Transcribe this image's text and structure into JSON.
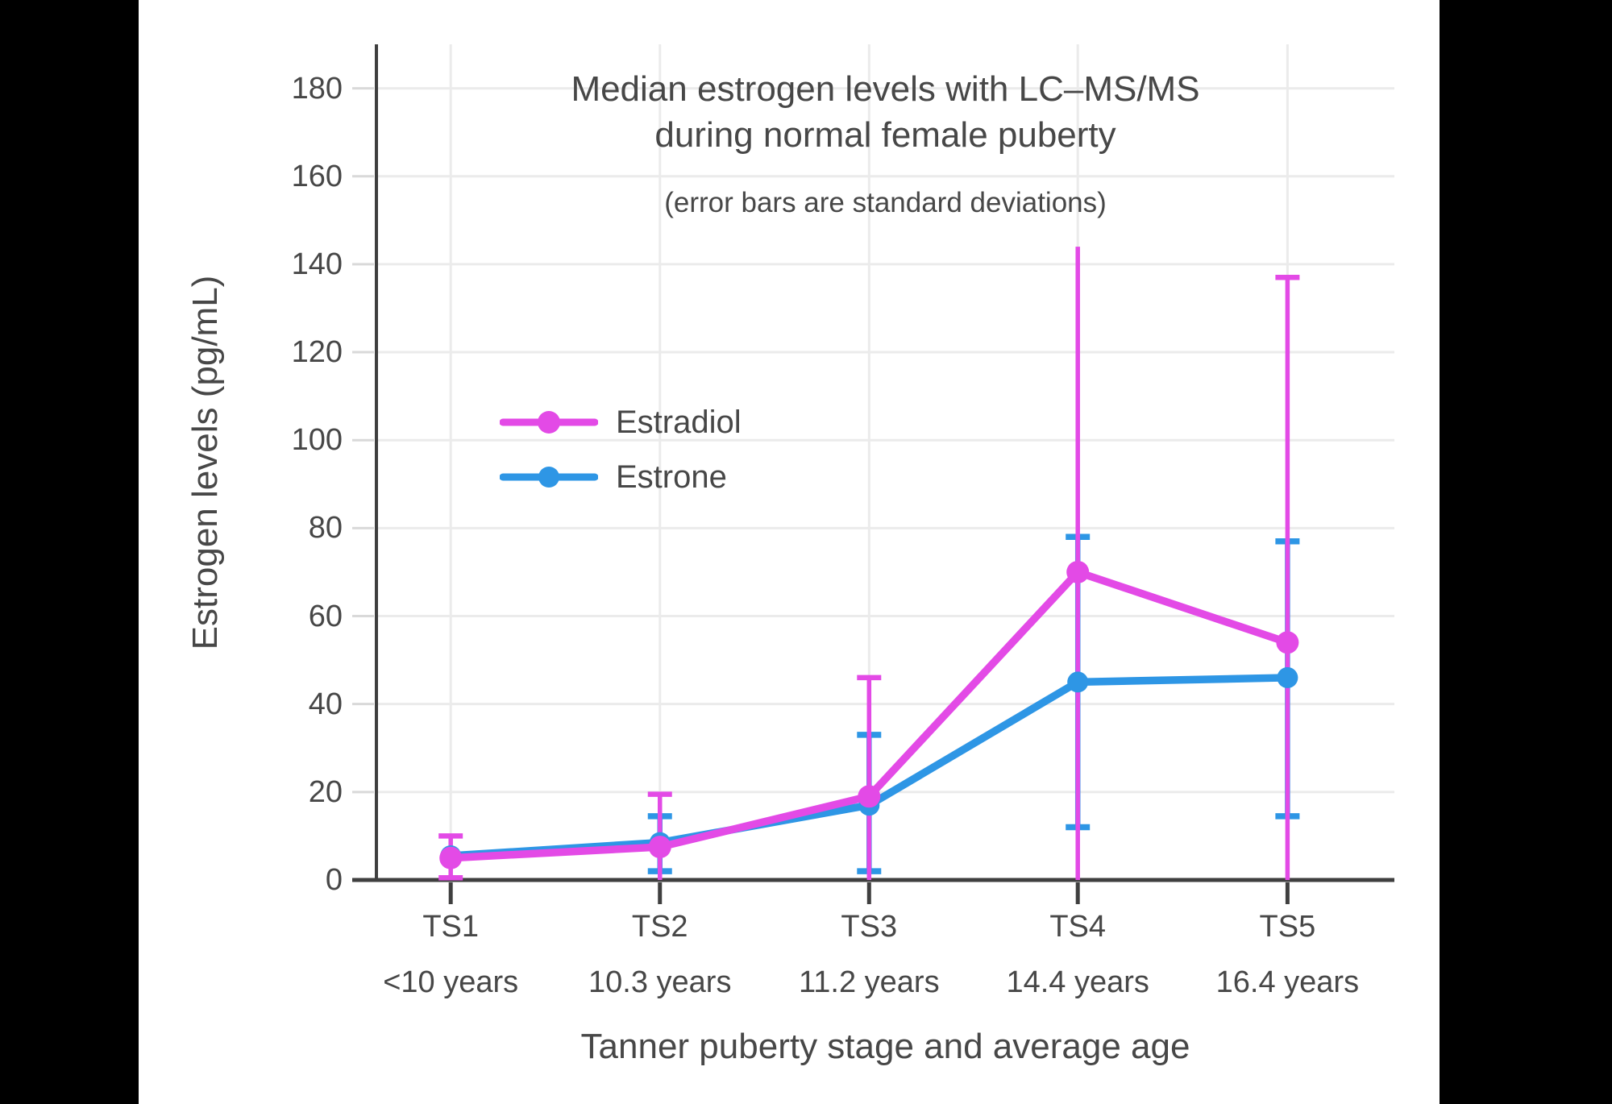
{
  "page": {
    "background": "#000000",
    "canvas_background": "#FFFFFF"
  },
  "chart_data": {
    "type": "line",
    "title_line1": "Median estrogen levels with LC–MS/MS",
    "title_line2": "during normal female puberty",
    "subtitle": "(error bars are standard deviations)",
    "xlabel": "Tanner puberty stage and average age",
    "ylabel": "Estrogen levels (pg/mL)",
    "ylim": [
      0,
      190
    ],
    "yticks": [
      0,
      20,
      40,
      60,
      80,
      100,
      120,
      140,
      160,
      180
    ],
    "grid": true,
    "legend_position": "inside-upper-left",
    "categories": [
      "TS1",
      "TS2",
      "TS3",
      "TS4",
      "TS5"
    ],
    "category_ages": [
      "<10 years",
      "10.3 years",
      "11.2 years",
      "14.4 years",
      "16.4 years"
    ],
    "series": [
      {
        "name": "Estradiol",
        "color": "#E34AE6",
        "values": [
          5,
          7.5,
          19,
          70,
          54
        ],
        "error_low": [
          0.5,
          0,
          0,
          0,
          0
        ],
        "error_high": [
          10,
          19.5,
          46,
          144,
          137
        ],
        "error_low_cap": [
          true,
          false,
          false,
          false,
          false
        ],
        "error_high_cap": [
          true,
          true,
          true,
          false,
          true
        ]
      },
      {
        "name": "Estrone",
        "color": "#2E96E5",
        "values": [
          5.5,
          8.5,
          17,
          45,
          46
        ],
        "error_low": [
          null,
          2,
          2,
          12,
          14.5
        ],
        "error_high": [
          null,
          14.5,
          33,
          78,
          77
        ],
        "error_low_cap": [
          false,
          true,
          true,
          true,
          true
        ],
        "error_high_cap": [
          false,
          true,
          true,
          true,
          true
        ]
      }
    ],
    "colors": {
      "axis": "#3F3F3F",
      "grid": "#EBEBEB",
      "tick": "#D9D9D9",
      "text": "#474747"
    }
  }
}
